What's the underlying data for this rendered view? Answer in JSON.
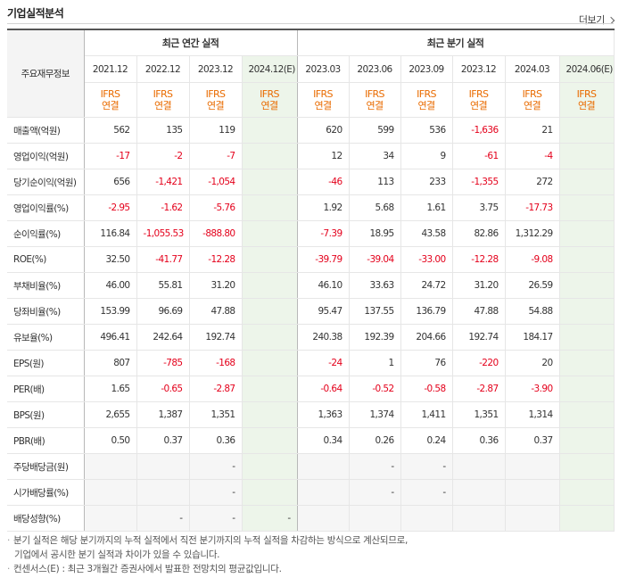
{
  "section_title": "기업실적분석",
  "more_label": "더보기",
  "group_header": {
    "row_label": "주요재무정보",
    "annual": "최근 연간 실적",
    "quarterly": "최근 분기 실적"
  },
  "periods": {
    "annual": [
      "2021.12",
      "2022.12",
      "2023.12",
      "2024.12(E)"
    ],
    "quarterly": [
      "2023.03",
      "2023.06",
      "2023.09",
      "2023.12",
      "2024.03",
      "2024.06(E)"
    ]
  },
  "ifrs": {
    "top": "IFRS",
    "bottom": "연결"
  },
  "rows": [
    {
      "label": "매출액(억원)",
      "values": [
        "562",
        "135",
        "119",
        "",
        "620",
        "599",
        "536",
        "-1,636",
        "21",
        ""
      ]
    },
    {
      "label": "영업이익(억원)",
      "values": [
        "-17",
        "-2",
        "-7",
        "",
        "12",
        "34",
        "9",
        "-61",
        "-4",
        ""
      ]
    },
    {
      "label": "당기순이익(억원)",
      "values": [
        "656",
        "-1,421",
        "-1,054",
        "",
        "-46",
        "113",
        "233",
        "-1,355",
        "272",
        ""
      ]
    },
    {
      "label": "영업이익률(%)",
      "values": [
        "-2.95",
        "-1.62",
        "-5.76",
        "",
        "1.92",
        "5.68",
        "1.61",
        "3.75",
        "-17.73",
        ""
      ]
    },
    {
      "label": "순이익률(%)",
      "values": [
        "116.84",
        "-1,055.53",
        "-888.80",
        "",
        "-7.39",
        "18.95",
        "43.58",
        "82.86",
        "1,312.29",
        ""
      ]
    },
    {
      "label": "ROE(%)",
      "values": [
        "32.50",
        "-41.77",
        "-12.28",
        "",
        "-39.79",
        "-39.04",
        "-33.00",
        "-12.28",
        "-9.08",
        ""
      ]
    },
    {
      "label": "부채비율(%)",
      "values": [
        "46.00",
        "55.81",
        "31.20",
        "",
        "46.10",
        "33.63",
        "24.72",
        "31.20",
        "26.59",
        ""
      ]
    },
    {
      "label": "당좌비율(%)",
      "values": [
        "153.99",
        "96.69",
        "47.88",
        "",
        "95.47",
        "137.55",
        "136.79",
        "47.88",
        "54.88",
        ""
      ]
    },
    {
      "label": "유보율(%)",
      "values": [
        "496.41",
        "242.64",
        "192.74",
        "",
        "240.38",
        "192.39",
        "204.66",
        "192.74",
        "184.17",
        ""
      ]
    },
    {
      "label": "EPS(원)",
      "values": [
        "807",
        "-785",
        "-168",
        "",
        "-24",
        "1",
        "76",
        "-220",
        "20",
        ""
      ]
    },
    {
      "label": "PER(배)",
      "values": [
        "1.65",
        "-0.65",
        "-2.87",
        "",
        "-0.64",
        "-0.52",
        "-0.58",
        "-2.87",
        "-3.90",
        ""
      ]
    },
    {
      "label": "BPS(원)",
      "values": [
        "2,655",
        "1,387",
        "1,351",
        "",
        "1,363",
        "1,374",
        "1,411",
        "1,351",
        "1,314",
        ""
      ]
    },
    {
      "label": "PBR(배)",
      "values": [
        "0.50",
        "0.37",
        "0.36",
        "",
        "0.34",
        "0.26",
        "0.24",
        "0.36",
        "0.37",
        ""
      ]
    },
    {
      "label": "주당배당금(원)",
      "values": [
        "",
        "",
        "-",
        "",
        "",
        "-",
        "-",
        "",
        "",
        ""
      ]
    },
    {
      "label": "시가배당률(%)",
      "values": [
        "",
        "",
        "-",
        "",
        "",
        "-",
        "-",
        "",
        "",
        ""
      ]
    },
    {
      "label": "배당성향(%)",
      "values": [
        "",
        "-",
        "-",
        "-",
        "",
        "",
        "",
        "",
        "",
        ""
      ]
    }
  ],
  "notes": [
    "분기 실적은 해당 분기까지의 누적 실적에서 직전 분기까지의 누적 실적을 차감하는 방식으로 계산되므로,",
    "기업에서 공시한 분기 실적과 차이가 있을 수 있습니다.",
    "컨센서스(E) : 최근 3개월간 증권사에서 발표한 전망치의 평균값입니다."
  ],
  "colors": {
    "negative": "#e4001b",
    "ifrs": "#e96b00",
    "estimate_bg": "#edf5ea"
  }
}
